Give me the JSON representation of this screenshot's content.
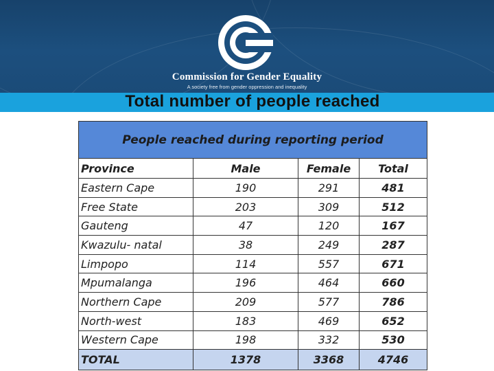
{
  "header": {
    "organization": "Commission for Gender Equality",
    "tagline": "A society free from gender oppression and inequality",
    "logo_icon": "cge-logo-icon"
  },
  "slide": {
    "title": "Total number of people reached"
  },
  "table": {
    "caption": "People reached during reporting period",
    "columns": [
      "Province",
      "Male",
      "Female",
      "Total"
    ],
    "rows": [
      {
        "province": "Eastern Cape",
        "male": "190",
        "female": "291",
        "total": "481"
      },
      {
        "province": "Free State",
        "male": "203",
        "female": "309",
        "total": "512"
      },
      {
        "province": "Gauteng",
        "male": "47",
        "female": "120",
        "total": "167"
      },
      {
        "province": "Kwazulu- natal",
        "male": "38",
        "female": "249",
        "total": "287"
      },
      {
        "province": "Limpopo",
        "male": "114",
        "female": "557",
        "total": "671"
      },
      {
        "province": "Mpumalanga",
        "male": "196",
        "female": "464",
        "total": "660"
      },
      {
        "province": "Northern Cape",
        "male": "209",
        "female": "577",
        "total": "786"
      },
      {
        "province": "North-west",
        "male": "183",
        "female": "469",
        "total": "652"
      },
      {
        "province": "Western Cape",
        "male": "198",
        "female": "332",
        "total": "530"
      }
    ],
    "totals": {
      "label": "TOTAL",
      "male": "1378",
      "female": "3368",
      "total": "4746"
    }
  },
  "colors": {
    "header_bg": "#1c4f7e",
    "title_bar": "#1aa2dd",
    "table_banner": "#5588d8",
    "total_row": "#c5d5ef"
  }
}
